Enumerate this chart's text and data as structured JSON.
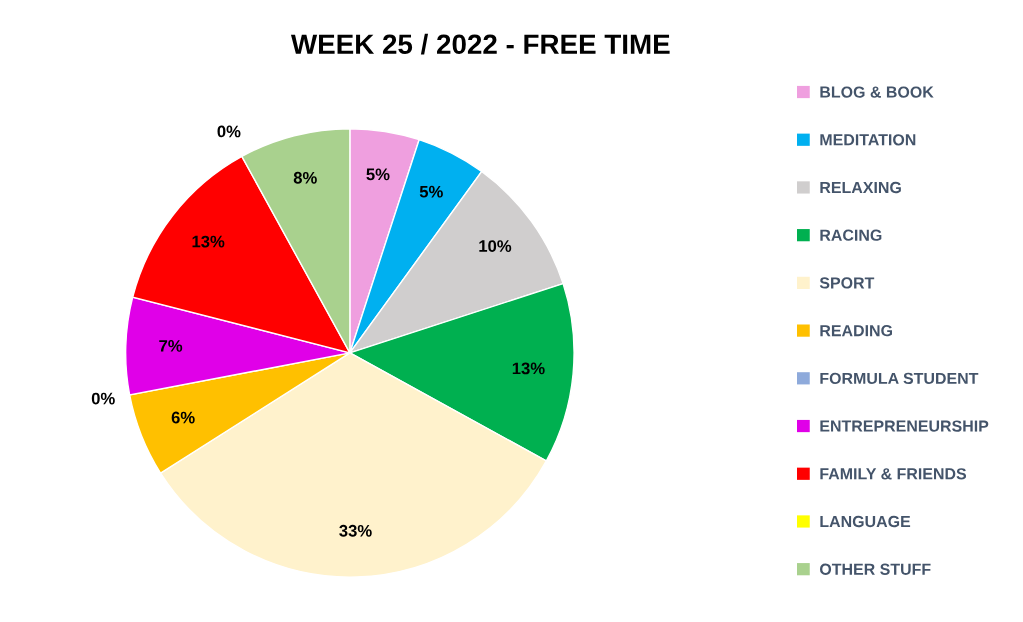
{
  "chart_data": {
    "type": "pie",
    "title": "WEEK 25 / 2022 - FREE TIME",
    "categories": [
      "BLOG & BOOK",
      "MEDITATION",
      "RELAXING",
      "RACING",
      "SPORT",
      "READING",
      "FORMULA STUDENT",
      "ENTREPRENEURSHIP",
      "FAMILY & FRIENDS",
      "LANGUAGE",
      "OTHER STUFF"
    ],
    "values": [
      5,
      5,
      10,
      13,
      33,
      6,
      0,
      7,
      13,
      0,
      8
    ],
    "colors": [
      "#ef9fdf",
      "#00b0f0",
      "#d0cece",
      "#00b050",
      "#fff2cc",
      "#ffc000",
      "#8eaadb",
      "#e000e8",
      "#ff0000",
      "#ffff00",
      "#a9d18e"
    ],
    "value_labels": [
      "5%",
      "5%",
      "10%",
      "13%",
      "33%",
      "6%",
      "0%",
      "7%",
      "13%",
      "0%",
      "8%"
    ],
    "legend": "right"
  }
}
